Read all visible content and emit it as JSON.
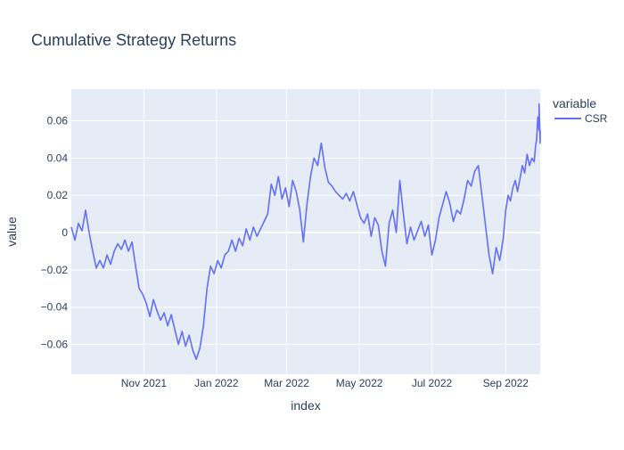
{
  "chart_data": {
    "type": "line",
    "title": "Cumulative Strategy Returns",
    "xlabel": "index",
    "ylabel": "value",
    "legend": {
      "title": "variable",
      "position": "top-right"
    },
    "grid": true,
    "xlim": [
      "2021-09-01",
      "2022-09-30"
    ],
    "ylim": [
      -0.076,
      0.077
    ],
    "x_ticks": [
      {
        "date": "2021-11-01",
        "label": "Nov 2021"
      },
      {
        "date": "2022-01-01",
        "label": "Jan 2022"
      },
      {
        "date": "2022-03-01",
        "label": "Mar 2022"
      },
      {
        "date": "2022-05-01",
        "label": "May 2022"
      },
      {
        "date": "2022-07-01",
        "label": "Jul 2022"
      },
      {
        "date": "2022-09-01",
        "label": "Sep 2022"
      }
    ],
    "y_ticks": [
      {
        "value": -0.06,
        "label": "−0.06"
      },
      {
        "value": -0.04,
        "label": "−0.04"
      },
      {
        "value": -0.02,
        "label": "−0.02"
      },
      {
        "value": 0,
        "label": "0"
      },
      {
        "value": 0.02,
        "label": "0.02"
      },
      {
        "value": 0.04,
        "label": "0.04"
      },
      {
        "value": 0.06,
        "label": "0.06"
      }
    ],
    "series": [
      {
        "name": "CSR",
        "color": "#636efa",
        "points": [
          [
            "2021-09-01",
            0.003
          ],
          [
            "2021-09-04",
            -0.004
          ],
          [
            "2021-09-07",
            0.005
          ],
          [
            "2021-09-10",
            0.001
          ],
          [
            "2021-09-13",
            0.012
          ],
          [
            "2021-09-16",
            0.0
          ],
          [
            "2021-09-19",
            -0.01
          ],
          [
            "2021-09-22",
            -0.019
          ],
          [
            "2021-09-25",
            -0.015
          ],
          [
            "2021-09-28",
            -0.019
          ],
          [
            "2021-10-01",
            -0.012
          ],
          [
            "2021-10-04",
            -0.017
          ],
          [
            "2021-10-07",
            -0.01
          ],
          [
            "2021-10-10",
            -0.006
          ],
          [
            "2021-10-13",
            -0.009
          ],
          [
            "2021-10-16",
            -0.004
          ],
          [
            "2021-10-19",
            -0.01
          ],
          [
            "2021-10-22",
            -0.005
          ],
          [
            "2021-10-25",
            -0.018
          ],
          [
            "2021-10-28",
            -0.03
          ],
          [
            "2021-10-31",
            -0.033
          ],
          [
            "2021-11-03",
            -0.038
          ],
          [
            "2021-11-06",
            -0.045
          ],
          [
            "2021-11-09",
            -0.036
          ],
          [
            "2021-11-12",
            -0.042
          ],
          [
            "2021-11-15",
            -0.047
          ],
          [
            "2021-11-18",
            -0.043
          ],
          [
            "2021-11-21",
            -0.05
          ],
          [
            "2021-11-24",
            -0.044
          ],
          [
            "2021-11-27",
            -0.052
          ],
          [
            "2021-11-30",
            -0.06
          ],
          [
            "2021-12-03",
            -0.053
          ],
          [
            "2021-12-06",
            -0.061
          ],
          [
            "2021-12-09",
            -0.055
          ],
          [
            "2021-12-12",
            -0.063
          ],
          [
            "2021-12-15",
            -0.068
          ],
          [
            "2021-12-18",
            -0.062
          ],
          [
            "2021-12-21",
            -0.05
          ],
          [
            "2021-12-24",
            -0.03
          ],
          [
            "2021-12-27",
            -0.018
          ],
          [
            "2021-12-30",
            -0.022
          ],
          [
            "2022-01-02",
            -0.015
          ],
          [
            "2022-01-05",
            -0.019
          ],
          [
            "2022-01-08",
            -0.012
          ],
          [
            "2022-01-11",
            -0.01
          ],
          [
            "2022-01-14",
            -0.004
          ],
          [
            "2022-01-17",
            -0.01
          ],
          [
            "2022-01-20",
            -0.003
          ],
          [
            "2022-01-23",
            -0.007
          ],
          [
            "2022-01-26",
            0.002
          ],
          [
            "2022-01-29",
            -0.004
          ],
          [
            "2022-02-01",
            0.003
          ],
          [
            "2022-02-04",
            -0.002
          ],
          [
            "2022-02-07",
            0.002
          ],
          [
            "2022-02-10",
            0.006
          ],
          [
            "2022-02-13",
            0.01
          ],
          [
            "2022-02-16",
            0.026
          ],
          [
            "2022-02-19",
            0.02
          ],
          [
            "2022-02-22",
            0.03
          ],
          [
            "2022-02-25",
            0.018
          ],
          [
            "2022-02-28",
            0.024
          ],
          [
            "2022-03-03",
            0.014
          ],
          [
            "2022-03-06",
            0.028
          ],
          [
            "2022-03-09",
            0.022
          ],
          [
            "2022-03-12",
            0.012
          ],
          [
            "2022-03-15",
            -0.005
          ],
          [
            "2022-03-18",
            0.015
          ],
          [
            "2022-03-21",
            0.03
          ],
          [
            "2022-03-24",
            0.04
          ],
          [
            "2022-03-27",
            0.036
          ],
          [
            "2022-03-30",
            0.048
          ],
          [
            "2022-04-02",
            0.035
          ],
          [
            "2022-04-05",
            0.027
          ],
          [
            "2022-04-08",
            0.025
          ],
          [
            "2022-04-11",
            0.022
          ],
          [
            "2022-04-14",
            0.02
          ],
          [
            "2022-04-17",
            0.018
          ],
          [
            "2022-04-20",
            0.021
          ],
          [
            "2022-04-23",
            0.017
          ],
          [
            "2022-04-26",
            0.022
          ],
          [
            "2022-04-29",
            0.015
          ],
          [
            "2022-05-02",
            0.008
          ],
          [
            "2022-05-05",
            0.005
          ],
          [
            "2022-05-08",
            0.01
          ],
          [
            "2022-05-11",
            -0.002
          ],
          [
            "2022-05-14",
            0.008
          ],
          [
            "2022-05-17",
            0.004
          ],
          [
            "2022-05-20",
            -0.01
          ],
          [
            "2022-05-23",
            -0.018
          ],
          [
            "2022-05-26",
            0.005
          ],
          [
            "2022-05-29",
            0.012
          ],
          [
            "2022-06-01",
            0.0
          ],
          [
            "2022-06-04",
            0.028
          ],
          [
            "2022-06-07",
            0.01
          ],
          [
            "2022-06-10",
            -0.006
          ],
          [
            "2022-06-13",
            0.003
          ],
          [
            "2022-06-16",
            -0.004
          ],
          [
            "2022-06-19",
            0.001
          ],
          [
            "2022-06-22",
            0.006
          ],
          [
            "2022-06-25",
            -0.002
          ],
          [
            "2022-06-28",
            0.004
          ],
          [
            "2022-07-01",
            -0.012
          ],
          [
            "2022-07-04",
            -0.004
          ],
          [
            "2022-07-07",
            0.008
          ],
          [
            "2022-07-10",
            0.015
          ],
          [
            "2022-07-13",
            0.022
          ],
          [
            "2022-07-16",
            0.016
          ],
          [
            "2022-07-19",
            0.006
          ],
          [
            "2022-07-22",
            0.012
          ],
          [
            "2022-07-25",
            0.01
          ],
          [
            "2022-07-28",
            0.018
          ],
          [
            "2022-07-31",
            0.028
          ],
          [
            "2022-08-03",
            0.025
          ],
          [
            "2022-08-06",
            0.033
          ],
          [
            "2022-08-09",
            0.036
          ],
          [
            "2022-08-12",
            0.02
          ],
          [
            "2022-08-15",
            0.004
          ],
          [
            "2022-08-18",
            -0.012
          ],
          [
            "2022-08-21",
            -0.022
          ],
          [
            "2022-08-24",
            -0.008
          ],
          [
            "2022-08-27",
            -0.015
          ],
          [
            "2022-08-30",
            -0.003
          ],
          [
            "2022-09-01",
            0.012
          ],
          [
            "2022-09-03",
            0.02
          ],
          [
            "2022-09-05",
            0.017
          ],
          [
            "2022-09-07",
            0.024
          ],
          [
            "2022-09-09",
            0.028
          ],
          [
            "2022-09-11",
            0.022
          ],
          [
            "2022-09-13",
            0.029
          ],
          [
            "2022-09-15",
            0.036
          ],
          [
            "2022-09-17",
            0.032
          ],
          [
            "2022-09-19",
            0.042
          ],
          [
            "2022-09-21",
            0.036
          ],
          [
            "2022-09-23",
            0.04
          ],
          [
            "2022-09-25",
            0.038
          ],
          [
            "2022-09-26",
            0.046
          ],
          [
            "2022-09-27",
            0.05
          ],
          [
            "2022-09-28",
            0.062
          ],
          [
            "2022-09-29",
            0.055
          ],
          [
            "2022-09-29",
            0.069
          ],
          [
            "2022-09-30",
            0.048
          ],
          [
            "2022-09-30",
            0.055
          ]
        ]
      }
    ]
  }
}
